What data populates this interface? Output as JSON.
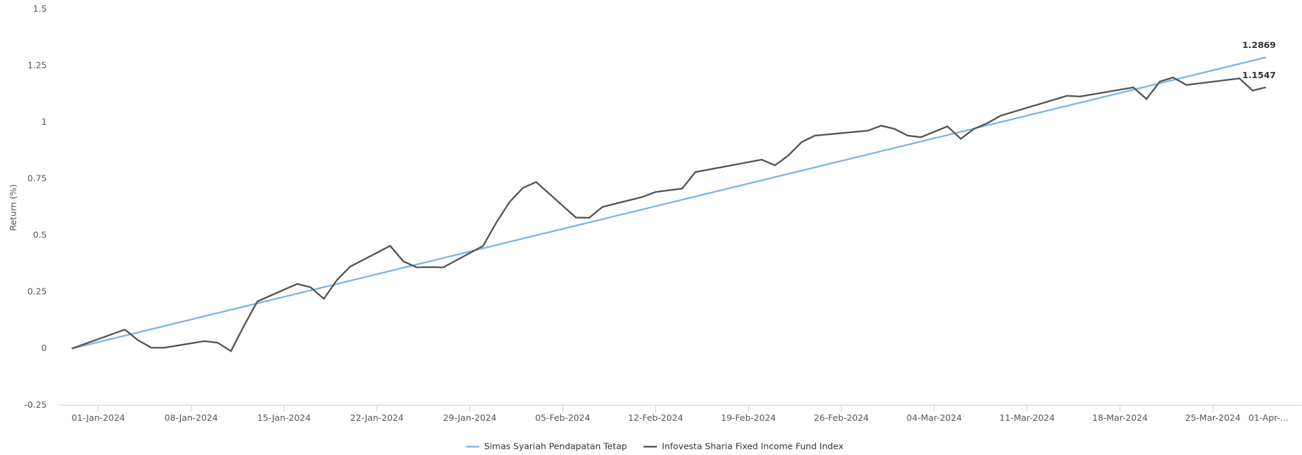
{
  "chart_data": {
    "type": "line",
    "y_label": "Return (%)",
    "xlim": [
      "2023-12-30",
      "2024-03-29"
    ],
    "xticks": [
      {
        "value": "2024-01-01",
        "label": "01-Jan-2024"
      },
      {
        "value": "2024-01-08",
        "label": "08-Jan-2024"
      },
      {
        "value": "2024-01-15",
        "label": "15-Jan-2024"
      },
      {
        "value": "2024-01-22",
        "label": "22-Jan-2024"
      },
      {
        "value": "2024-01-29",
        "label": "29-Jan-2024"
      },
      {
        "value": "2024-02-05",
        "label": "05-Feb-2024"
      },
      {
        "value": "2024-02-12",
        "label": "12-Feb-2024"
      },
      {
        "value": "2024-02-19",
        "label": "19-Feb-2024"
      },
      {
        "value": "2024-02-26",
        "label": "26-Feb-2024"
      },
      {
        "value": "2024-03-04",
        "label": "04-Mar-2024"
      },
      {
        "value": "2024-03-11",
        "label": "11-Mar-2024"
      },
      {
        "value": "2024-03-18",
        "label": "18-Mar-2024"
      },
      {
        "value": "2024-03-25",
        "label": "25-Mar-2024"
      },
      {
        "value": "2024-04-01",
        "label": "01-Apr-..."
      }
    ],
    "ylim": [
      -0.25,
      1.5
    ],
    "yticks": [
      -0.25,
      0,
      0.25,
      0.5,
      0.75,
      1,
      1.25,
      1.5
    ],
    "grid": false,
    "legend": "bottom",
    "series": [
      {
        "name": "Simas Syariah Pendapatan Tetap",
        "color": "#7cb5ec",
        "x": [
          "2023-12-30",
          "2024-03-29"
        ],
        "values": [
          0,
          1.2869
        ]
      },
      {
        "name": "Infovesta Sharia Fixed Income Fund Index",
        "color": "#555555",
        "x": [
          "2023-12-30",
          "2024-01-03",
          "2024-01-04",
          "2024-01-05",
          "2024-01-06",
          "2024-01-09",
          "2024-01-10",
          "2024-01-11",
          "2024-01-12",
          "2024-01-13",
          "2024-01-16",
          "2024-01-17",
          "2024-01-18",
          "2024-01-19",
          "2024-01-20",
          "2024-01-23",
          "2024-01-24",
          "2024-01-25",
          "2024-01-26",
          "2024-01-27",
          "2024-01-30",
          "2024-01-31",
          "2024-02-01",
          "2024-02-02",
          "2024-02-03",
          "2024-02-06",
          "2024-02-07",
          "2024-02-08",
          "2024-02-11",
          "2024-02-12",
          "2024-02-14",
          "2024-02-15",
          "2024-02-20",
          "2024-02-21",
          "2024-02-22",
          "2024-02-23",
          "2024-02-24",
          "2024-02-28",
          "2024-02-29",
          "2024-03-01",
          "2024-03-02",
          "2024-03-03",
          "2024-03-05",
          "2024-03-06",
          "2024-03-07",
          "2024-03-08",
          "2024-03-09",
          "2024-03-14",
          "2024-03-15",
          "2024-03-19",
          "2024-03-20",
          "2024-03-21",
          "2024-03-22",
          "2024-03-23",
          "2024-03-27",
          "2024-03-28",
          "2024-03-29"
        ],
        "values": [
          0,
          0.084,
          0.037,
          0.004,
          0.004,
          0.033,
          0.026,
          -0.011,
          0.103,
          0.209,
          0.286,
          0.271,
          0.22,
          0.304,
          0.363,
          0.454,
          0.385,
          0.359,
          0.36,
          0.359,
          0.454,
          0.557,
          0.648,
          0.71,
          0.736,
          0.579,
          0.578,
          0.626,
          0.67,
          0.692,
          0.707,
          0.78,
          0.835,
          0.81,
          0.853,
          0.912,
          0.941,
          0.963,
          0.985,
          0.971,
          0.941,
          0.934,
          0.982,
          0.927,
          0.971,
          0.996,
          1.029,
          1.117,
          1.114,
          1.154,
          1.103,
          1.18,
          1.198,
          1.165,
          1.194,
          1.14,
          1.1547
        ]
      }
    ]
  }
}
